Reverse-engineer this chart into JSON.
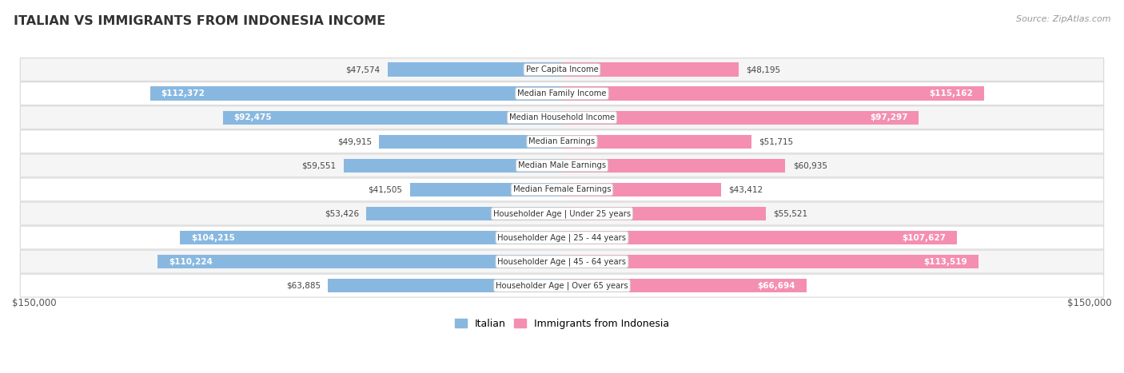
{
  "title": "ITALIAN VS IMMIGRANTS FROM INDONESIA INCOME",
  "source": "Source: ZipAtlas.com",
  "categories": [
    "Per Capita Income",
    "Median Family Income",
    "Median Household Income",
    "Median Earnings",
    "Median Male Earnings",
    "Median Female Earnings",
    "Householder Age | Under 25 years",
    "Householder Age | 25 - 44 years",
    "Householder Age | 45 - 64 years",
    "Householder Age | Over 65 years"
  ],
  "italian_values": [
    47574,
    112372,
    92475,
    49915,
    59551,
    41505,
    53426,
    104215,
    110224,
    63885
  ],
  "indonesia_values": [
    48195,
    115162,
    97297,
    51715,
    60935,
    43412,
    55521,
    107627,
    113519,
    66694
  ],
  "italian_labels": [
    "$47,574",
    "$112,372",
    "$92,475",
    "$49,915",
    "$59,551",
    "$41,505",
    "$53,426",
    "$104,215",
    "$110,224",
    "$63,885"
  ],
  "indonesia_labels": [
    "$48,195",
    "$115,162",
    "$97,297",
    "$51,715",
    "$60,935",
    "$43,412",
    "$55,521",
    "$107,627",
    "$113,519",
    "$66,694"
  ],
  "italian_color": "#88b8e0",
  "indonesia_color": "#f48fb1",
  "row_bg_colors": [
    "#f5f5f5",
    "#ffffff",
    "#f5f5f5",
    "#ffffff",
    "#f5f5f5",
    "#ffffff",
    "#f5f5f5",
    "#ffffff",
    "#f5f5f5",
    "#ffffff"
  ],
  "max_value": 150000,
  "legend_italian": "Italian",
  "legend_indonesia": "Immigrants from Indonesia",
  "xlabel_left": "$150,000",
  "xlabel_right": "$150,000",
  "inside_label_threshold": 65000
}
